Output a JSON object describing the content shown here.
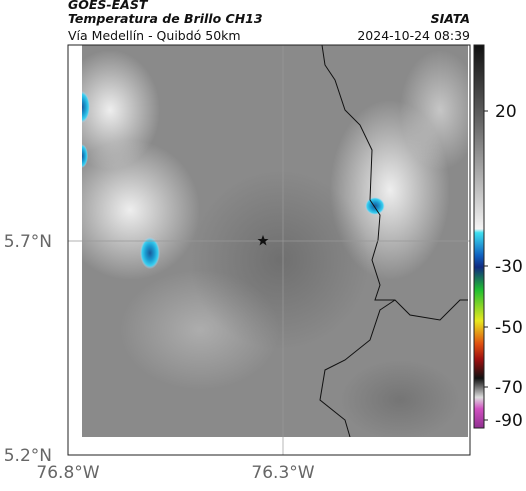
{
  "header": {
    "satellite": "GOES-EAST",
    "product": "Temperatura de Brillo CH13",
    "region": "Vía Medellín - Quibdó 50km",
    "source": "SIATA",
    "timestamp": "2024-10-24 08:39"
  },
  "axes": {
    "x_labels": [
      "76.8°W",
      "76.3°W"
    ],
    "y_labels": [
      "5.7°N",
      "5.2°N"
    ]
  },
  "colorbar": {
    "ticks": [
      20,
      -30,
      -50,
      -70,
      -90
    ]
  }
}
